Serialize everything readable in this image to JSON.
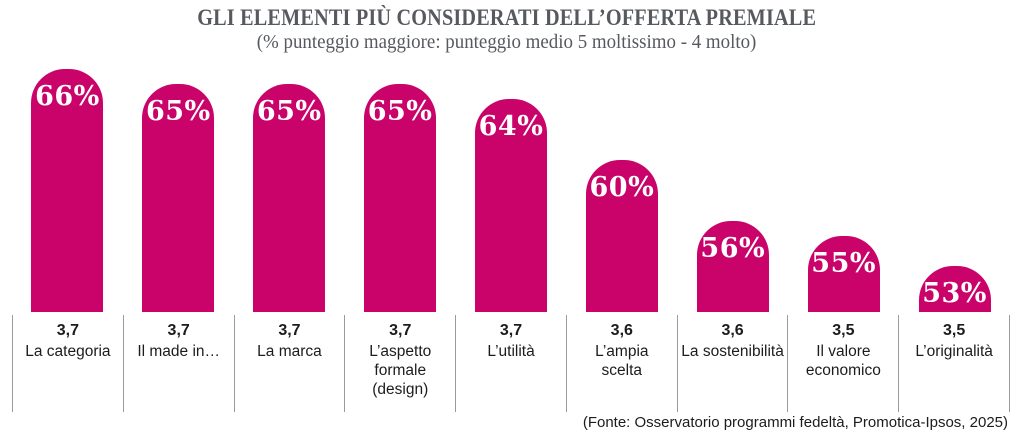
{
  "header": {
    "title": "GLI ELEMENTI PIÙ CONSIDERATI DELL’OFFERTA PREMIALE",
    "subtitle": "(% punteggio maggiore: punteggio medio 5 moltissimo - 4 molto)"
  },
  "footer": {
    "source": "(Fonte: Osservatorio programmi fedeltà, Promotica-Ipsos, 2025)"
  },
  "chart_data": {
    "type": "bar",
    "title": "GLI ELEMENTI PIÙ CONSIDERATI DELL’OFFERTA PREMIALE",
    "subtitle": "(% punteggio maggiore: punteggio medio 5 moltissimo - 4 molto)",
    "categories": [
      "La categoria",
      "Il made in…",
      "La marca",
      "L’aspetto formale (design)",
      "L’utilità",
      "L’ampia scelta",
      "La sostenibilità",
      "Il valore economico",
      "L’originalità"
    ],
    "series": [
      {
        "name": "% punteggio maggiore",
        "unit": "%",
        "values": [
          66,
          65,
          65,
          65,
          64,
          60,
          56,
          55,
          53
        ]
      },
      {
        "name": "punteggio medio",
        "values": [
          3.7,
          3.7,
          3.7,
          3.7,
          3.7,
          3.6,
          3.6,
          3.5,
          3.5
        ]
      }
    ],
    "bar_value_labels": [
      "66%",
      "65%",
      "65%",
      "65%",
      "64%",
      "60%",
      "56%",
      "55%",
      "53%"
    ],
    "score_value_labels": [
      "3,7",
      "3,7",
      "3,7",
      "3,7",
      "3,7",
      "3,6",
      "3,6",
      "3,5",
      "3,5"
    ],
    "category_label_lines": [
      [
        "La categoria"
      ],
      [
        "Il made in…"
      ],
      [
        "La marca"
      ],
      [
        "L’aspetto",
        "formale",
        "(design)"
      ],
      [
        "L’utilità"
      ],
      [
        "L’ampia",
        "scelta"
      ],
      [
        "La sostenibilità"
      ],
      [
        "Il valore",
        "economico"
      ],
      [
        "L’originalità"
      ]
    ],
    "xlabel": "",
    "ylabel": "",
    "ylim": [
      50,
      66
    ],
    "grid": false,
    "legend": false,
    "bar_color": "#c9036a",
    "bar_label_color": "#ffffff",
    "divider_color": "#9b9b9b",
    "title_color": "#56595e",
    "source_note": "(Fonte: Osservatorio programmi fedeltà, Promotica-Ipsos, 2025)"
  }
}
